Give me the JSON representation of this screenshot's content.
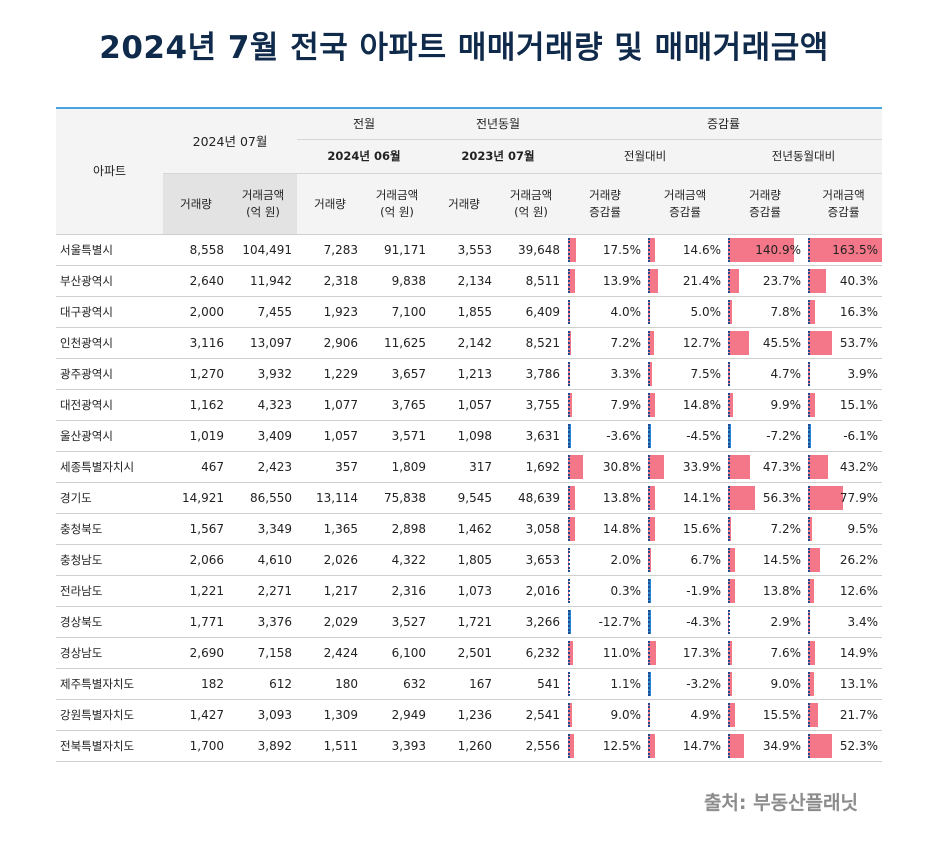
{
  "title": "2024년 7월 전국 아파트 매매거래량 및 매매거래금액",
  "header": {
    "region": "아파트",
    "current_month": "2024년 07월",
    "prev_month_group": "전월",
    "prev_year_group": "전년동월",
    "change_group": "증감률",
    "prev_month": "2024년 06월",
    "prev_year": "2023년 07월",
    "mom": "전월대비",
    "yoy": "전년동월대비",
    "col_volume": "거래량",
    "col_amount_line1": "거래금액",
    "col_amount_line2": "(억 원)",
    "col_vol_rate_line1": "거래량",
    "col_vol_rate_line2": "증감률",
    "col_amt_rate_line1": "거래금액",
    "col_amt_rate_line2": "증감률"
  },
  "accent_colors": {
    "positive_bar": "#f47789",
    "negative_bar": "#2a86d0",
    "header_line": "#4aa3df"
  },
  "rows": [
    {
      "region": "서울특별시",
      "vol": "8,558",
      "amt": "104,491",
      "pvol": "7,283",
      "pamt": "91,171",
      "yvol": "3,553",
      "yamt": "39,648",
      "mom_vol": 17.5,
      "mom_amt": 14.6,
      "yoy_vol": 140.9,
      "yoy_amt": 163.5
    },
    {
      "region": "부산광역시",
      "vol": "2,640",
      "amt": "11,942",
      "pvol": "2,318",
      "pamt": "9,838",
      "yvol": "2,134",
      "yamt": "8,511",
      "mom_vol": 13.9,
      "mom_amt": 21.4,
      "yoy_vol": 23.7,
      "yoy_amt": 40.3
    },
    {
      "region": "대구광역시",
      "vol": "2,000",
      "amt": "7,455",
      "pvol": "1,923",
      "pamt": "7,100",
      "yvol": "1,855",
      "yamt": "6,409",
      "mom_vol": 4.0,
      "mom_amt": 5.0,
      "yoy_vol": 7.8,
      "yoy_amt": 16.3
    },
    {
      "region": "인천광역시",
      "vol": "3,116",
      "amt": "13,097",
      "pvol": "2,906",
      "pamt": "11,625",
      "yvol": "2,142",
      "yamt": "8,521",
      "mom_vol": 7.2,
      "mom_amt": 12.7,
      "yoy_vol": 45.5,
      "yoy_amt": 53.7
    },
    {
      "region": "광주광역시",
      "vol": "1,270",
      "amt": "3,932",
      "pvol": "1,229",
      "pamt": "3,657",
      "yvol": "1,213",
      "yamt": "3,786",
      "mom_vol": 3.3,
      "mom_amt": 7.5,
      "yoy_vol": 4.7,
      "yoy_amt": 3.9
    },
    {
      "region": "대전광역시",
      "vol": "1,162",
      "amt": "4,323",
      "pvol": "1,077",
      "pamt": "3,765",
      "yvol": "1,057",
      "yamt": "3,755",
      "mom_vol": 7.9,
      "mom_amt": 14.8,
      "yoy_vol": 9.9,
      "yoy_amt": 15.1
    },
    {
      "region": "울산광역시",
      "vol": "1,019",
      "amt": "3,409",
      "pvol": "1,057",
      "pamt": "3,571",
      "yvol": "1,098",
      "yamt": "3,631",
      "mom_vol": -3.6,
      "mom_amt": -4.5,
      "yoy_vol": -7.2,
      "yoy_amt": -6.1
    },
    {
      "region": "세종특별자치시",
      "vol": "467",
      "amt": "2,423",
      "pvol": "357",
      "pamt": "1,809",
      "yvol": "317",
      "yamt": "1,692",
      "mom_vol": 30.8,
      "mom_amt": 33.9,
      "yoy_vol": 47.3,
      "yoy_amt": 43.2
    },
    {
      "region": "경기도",
      "vol": "14,921",
      "amt": "86,550",
      "pvol": "13,114",
      "pamt": "75,838",
      "yvol": "9,545",
      "yamt": "48,639",
      "mom_vol": 13.8,
      "mom_amt": 14.1,
      "yoy_vol": 56.3,
      "yoy_amt": 77.9
    },
    {
      "region": "충청북도",
      "vol": "1,567",
      "amt": "3,349",
      "pvol": "1,365",
      "pamt": "2,898",
      "yvol": "1,462",
      "yamt": "3,058",
      "mom_vol": 14.8,
      "mom_amt": 15.6,
      "yoy_vol": 7.2,
      "yoy_amt": 9.5
    },
    {
      "region": "충청남도",
      "vol": "2,066",
      "amt": "4,610",
      "pvol": "2,026",
      "pamt": "4,322",
      "yvol": "1,805",
      "yamt": "3,653",
      "mom_vol": 2.0,
      "mom_amt": 6.7,
      "yoy_vol": 14.5,
      "yoy_amt": 26.2
    },
    {
      "region": "전라남도",
      "vol": "1,221",
      "amt": "2,271",
      "pvol": "1,217",
      "pamt": "2,316",
      "yvol": "1,073",
      "yamt": "2,016",
      "mom_vol": 0.3,
      "mom_amt": -1.9,
      "yoy_vol": 13.8,
      "yoy_amt": 12.6
    },
    {
      "region": "경상북도",
      "vol": "1,771",
      "amt": "3,376",
      "pvol": "2,029",
      "pamt": "3,527",
      "yvol": "1,721",
      "yamt": "3,266",
      "mom_vol": -12.7,
      "mom_amt": -4.3,
      "yoy_vol": 2.9,
      "yoy_amt": 3.4
    },
    {
      "region": "경상남도",
      "vol": "2,690",
      "amt": "7,158",
      "pvol": "2,424",
      "pamt": "6,100",
      "yvol": "2,501",
      "yamt": "6,232",
      "mom_vol": 11.0,
      "mom_amt": 17.3,
      "yoy_vol": 7.6,
      "yoy_amt": 14.9
    },
    {
      "region": "제주특별자치도",
      "vol": "182",
      "amt": "612",
      "pvol": "180",
      "pamt": "632",
      "yvol": "167",
      "yamt": "541",
      "mom_vol": 1.1,
      "mom_amt": -3.2,
      "yoy_vol": 9.0,
      "yoy_amt": 13.1
    },
    {
      "region": "강원특별자치도",
      "vol": "1,427",
      "amt": "3,093",
      "pvol": "1,309",
      "pamt": "2,949",
      "yvol": "1,236",
      "yamt": "2,541",
      "mom_vol": 9.0,
      "mom_amt": 4.9,
      "yoy_vol": 15.5,
      "yoy_amt": 21.7
    },
    {
      "region": "전북특별자치도",
      "vol": "1,700",
      "amt": "3,892",
      "pvol": "1,511",
      "pamt": "3,393",
      "yvol": "1,260",
      "yamt": "2,556",
      "mom_vol": 12.5,
      "mom_amt": 14.7,
      "yoy_vol": 34.9,
      "yoy_amt": 52.3
    }
  ],
  "source": "출처: 부동산플래닛"
}
